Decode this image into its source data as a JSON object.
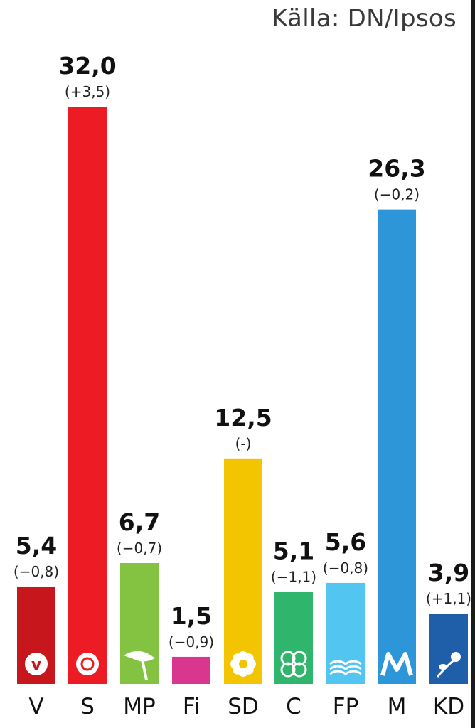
{
  "source": "Källa: DN/Ipsos",
  "chart_data": {
    "type": "bar",
    "categories": [
      "V",
      "S",
      "MP",
      "Fi",
      "SD",
      "C",
      "FP",
      "M",
      "KD"
    ],
    "values": [
      5.4,
      32.0,
      6.7,
      1.5,
      12.5,
      5.1,
      5.6,
      26.3,
      3.9
    ],
    "value_labels": [
      "5,4",
      "32,0",
      "6,7",
      "1,5",
      "12,5",
      "5,1",
      "5,6",
      "26,3",
      "3,9"
    ],
    "change_labels": [
      "(−0,8)",
      "(+3,5)",
      "(−0,7)",
      "(−0,9)",
      "(-)",
      "(−1,1)",
      "(−0,8)",
      "(−0,2)",
      "(+1,1)"
    ],
    "colors": [
      "#c8161d",
      "#ed1c24",
      "#83c341",
      "#d8368f",
      "#f2c500",
      "#2fb56c",
      "#52c5f0",
      "#2c96d8",
      "#1f5ea8"
    ],
    "icons": [
      "v-rose-logo",
      "s-rose-logo",
      "mp-dandelion-logo",
      "",
      "sd-flower-logo",
      "c-clover-logo",
      "fp-wave-logo",
      "m-letter-logo",
      "kd-flower-logo"
    ],
    "ylim": [
      0,
      32.0
    ],
    "grid": false,
    "legend": "none"
  }
}
